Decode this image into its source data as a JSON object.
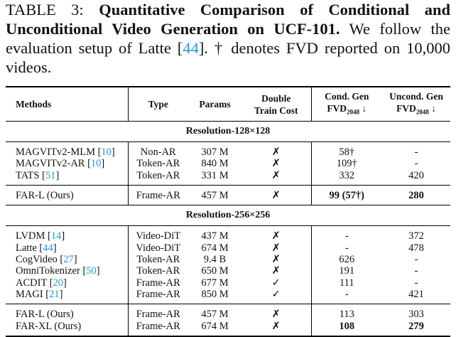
{
  "caption": {
    "label": "TABLE 3: ",
    "title": "Quantitative Comparison of Conditional and Unconditional Video Generation on UCF-101.",
    "text": " We follow the evaluation setup of Latte [",
    "ref": "44",
    "end": "]. † denotes FVD reported on 10,000 videos."
  },
  "table": {
    "header": {
      "methods": "Methods",
      "type": "Type",
      "params": "Params",
      "cost": [
        "Double",
        "Train Cost"
      ],
      "cond": [
        "Cond. Gen",
        "FVD",
        "2048",
        " ↓"
      ],
      "uncond": [
        "Uncond. Gen",
        "FVD",
        "2048",
        " ↓"
      ]
    },
    "sections": [
      {
        "title": "Resolution-128×128",
        "groups": [
          [
            {
              "method": [
                "MAGVITv2-MLM [",
                "10",
                "]"
              ],
              "type": "Non-AR",
              "params": "307 M",
              "cost": "✗",
              "cond": "58†",
              "uncond": "-"
            },
            {
              "method": [
                "MAGVITv2-AR [",
                "10",
                "]"
              ],
              "type": "Token-AR",
              "params": "840 M",
              "cost": "✗",
              "cond": "109†",
              "uncond": "-"
            },
            {
              "method": [
                "TATS [",
                "51",
                "]"
              ],
              "type": "Token-AR",
              "params": "331 M",
              "cost": "✗",
              "cond": "332",
              "uncond": "420"
            }
          ],
          [
            {
              "method": [
                "FAR-L (Ours)"
              ],
              "type": "Frame-AR",
              "params": "457 M",
              "cost": "✗",
              "cond": "99 (57†)",
              "uncond": "280",
              "bold": true
            }
          ]
        ]
      },
      {
        "title": "Resolution-256×256",
        "groups": [
          [
            {
              "method": [
                "LVDM [",
                "14",
                "]"
              ],
              "type": "Video-DiT",
              "params": "437 M",
              "cost": "✗",
              "cond": "-",
              "uncond": "372"
            },
            {
              "method": [
                "Latte [",
                "44",
                "]"
              ],
              "type": "Video-DiT",
              "params": "674 M",
              "cost": "✗",
              "cond": "-",
              "uncond": "478"
            },
            {
              "method": [
                "CogVideo [",
                "27",
                "]"
              ],
              "type": "Token-AR",
              "params": "9.4 B",
              "cost": "✗",
              "cond": "626",
              "uncond": "-"
            },
            {
              "method": [
                "OmniTokenizer [",
                "50",
                "]"
              ],
              "type": "Token-AR",
              "params": "650 M",
              "cost": "✗",
              "cond": "191",
              "uncond": "-"
            },
            {
              "method": [
                "ACDIT [",
                "20",
                "]"
              ],
              "type": "Frame-AR",
              "params": "677 M",
              "cost": "✓",
              "cond": "111",
              "uncond": "-"
            },
            {
              "method": [
                "MAGI [",
                "21",
                "]"
              ],
              "type": "Frame-AR",
              "params": "850 M",
              "cost": "✓",
              "cond": "-",
              "uncond": "421"
            }
          ],
          [
            {
              "method": [
                "FAR-L (Ours)"
              ],
              "type": "Frame-AR",
              "params": "457 M",
              "cost": "✗",
              "cond": "113",
              "uncond": "303"
            },
            {
              "method": [
                "FAR-XL (Ours)"
              ],
              "type": "Frame-AR",
              "params": "674 M",
              "cost": "✗",
              "cond": "108",
              "uncond": "279",
              "bold": true
            }
          ]
        ]
      }
    ]
  }
}
